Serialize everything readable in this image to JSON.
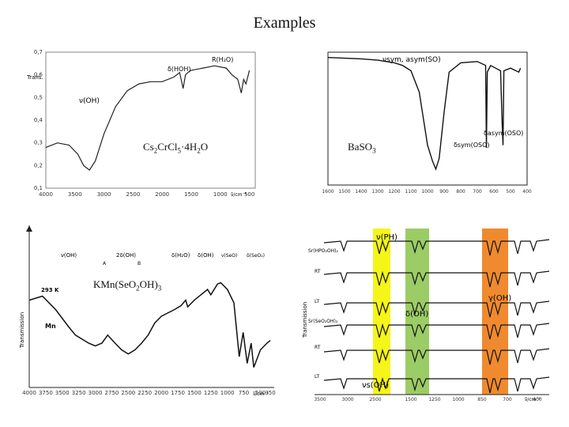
{
  "slide": {
    "title": "Examples",
    "labels": {
      "p1": "Cs2CrCl5·4H2O",
      "p2": "BaSO3",
      "p3": "KMn(SeO2OH)3"
    }
  },
  "chart_data": [
    {
      "type": "line",
      "xlim": [
        4000,
        400
      ],
      "ylim": [
        0.1,
        0.7
      ],
      "ylabel": "Trans.",
      "xlabel": "ν̃/cm⁻¹",
      "x_ticks": [
        "4000",
        "3500",
        "3000",
        "2500",
        "2000",
        "1500",
        "1000",
        "500"
      ],
      "y_ticks": [
        "0,7",
        "0,6",
        "0,5",
        "0,4",
        "0,3",
        "0,2",
        "0,1"
      ],
      "annotations": [
        "ν(OH)",
        "δ(HOH)",
        "R(H2O)"
      ],
      "series": [
        {
          "x": [
            4000,
            3800,
            3600,
            3450,
            3350,
            3250,
            3150,
            3000,
            2800,
            2600,
            2400,
            2200,
            2000,
            1800,
            1700,
            1640,
            1600,
            1560,
            1500,
            1300,
            1100,
            900,
            800,
            700,
            640,
            600,
            560,
            520,
            500
          ],
          "y": [
            0.28,
            0.3,
            0.29,
            0.25,
            0.2,
            0.18,
            0.22,
            0.34,
            0.46,
            0.53,
            0.56,
            0.57,
            0.57,
            0.59,
            0.61,
            0.54,
            0.6,
            0.61,
            0.62,
            0.63,
            0.64,
            0.63,
            0.6,
            0.58,
            0.52,
            0.58,
            0.56,
            0.6,
            0.62
          ]
        }
      ]
    },
    {
      "type": "line",
      "xlim": [
        1600,
        400
      ],
      "annotations": [
        "νsym, asym(SO)",
        "δasym(OSO)",
        "δsym(OSO)"
      ],
      "x_ticks": [
        "1600",
        "1500",
        "1400",
        "1300",
        "1200",
        "1100",
        "1000",
        "900",
        "800",
        "700",
        "600",
        "500",
        "400"
      ],
      "series": [
        {
          "x": [
            1600,
            1400,
            1300,
            1200,
            1150,
            1100,
            1050,
            1000,
            970,
            950,
            930,
            900,
            870,
            800,
            700,
            650,
            645,
            640,
            620,
            560,
            550,
            545,
            540,
            500,
            450,
            440
          ],
          "y": [
            0.96,
            0.95,
            0.94,
            0.92,
            0.9,
            0.86,
            0.7,
            0.3,
            0.18,
            0.12,
            0.2,
            0.55,
            0.85,
            0.92,
            0.93,
            0.9,
            0.28,
            0.85,
            0.9,
            0.86,
            0.45,
            0.3,
            0.86,
            0.88,
            0.85,
            0.88
          ]
        }
      ]
    },
    {
      "type": "line",
      "xlim": [
        4000,
        350
      ],
      "ylabel": "Transmission",
      "xlabel": "ν̃/cm⁻¹",
      "x_ticks": [
        "4000",
        "3750",
        "3500",
        "3250",
        "3000",
        "2750",
        "2500",
        "2250",
        "2000",
        "1750",
        "1500",
        "1250",
        "1000",
        "750",
        "500",
        "350"
      ],
      "annotations": [
        "ν(OH)",
        "2δ(OH)",
        "δ(H2O)",
        "δ(OH)",
        "ν(SeO)",
        "δ(SeO2)",
        "293 K",
        "Mn",
        "A",
        "B"
      ],
      "series": [
        {
          "x": [
            4000,
            3800,
            3600,
            3400,
            3300,
            3200,
            3100,
            3000,
            2900,
            2812,
            2700,
            2600,
            2500,
            2400,
            2300,
            2200,
            2100,
            2000,
            1800,
            1700,
            1630,
            1600,
            1500,
            1300,
            1250,
            1150,
            1100,
            1000,
            900,
            820,
            760,
            700,
            640,
            600,
            500,
            400,
            350
          ],
          "y": [
            0.62,
            0.65,
            0.55,
            0.42,
            0.36,
            0.33,
            0.3,
            0.28,
            0.3,
            0.36,
            0.3,
            0.25,
            0.22,
            0.25,
            0.3,
            0.36,
            0.45,
            0.5,
            0.55,
            0.58,
            0.62,
            0.57,
            0.62,
            0.7,
            0.66,
            0.74,
            0.75,
            0.7,
            0.6,
            0.2,
            0.38,
            0.15,
            0.3,
            0.12,
            0.25,
            0.3,
            0.32
          ]
        }
      ]
    },
    {
      "type": "line",
      "xlabel": "ν̃/cm⁻¹",
      "ylabel": "Transmission",
      "series_labels": [
        "Sr(HPO2OH)2",
        "RT",
        "LT",
        "Sr(SeO2OH)2",
        "RT",
        "LT"
      ],
      "bands": [
        "ν(PH)",
        "δ(OH)",
        "γ(OH)",
        "νs(OH)"
      ],
      "band_colors": [
        "#f5f51a",
        "#9ccc65",
        "#ef8a2f"
      ],
      "x_ticks": [
        "3500",
        "3000",
        "2500",
        "1500",
        "1250",
        "1000",
        "850",
        "700",
        "400"
      ]
    }
  ]
}
